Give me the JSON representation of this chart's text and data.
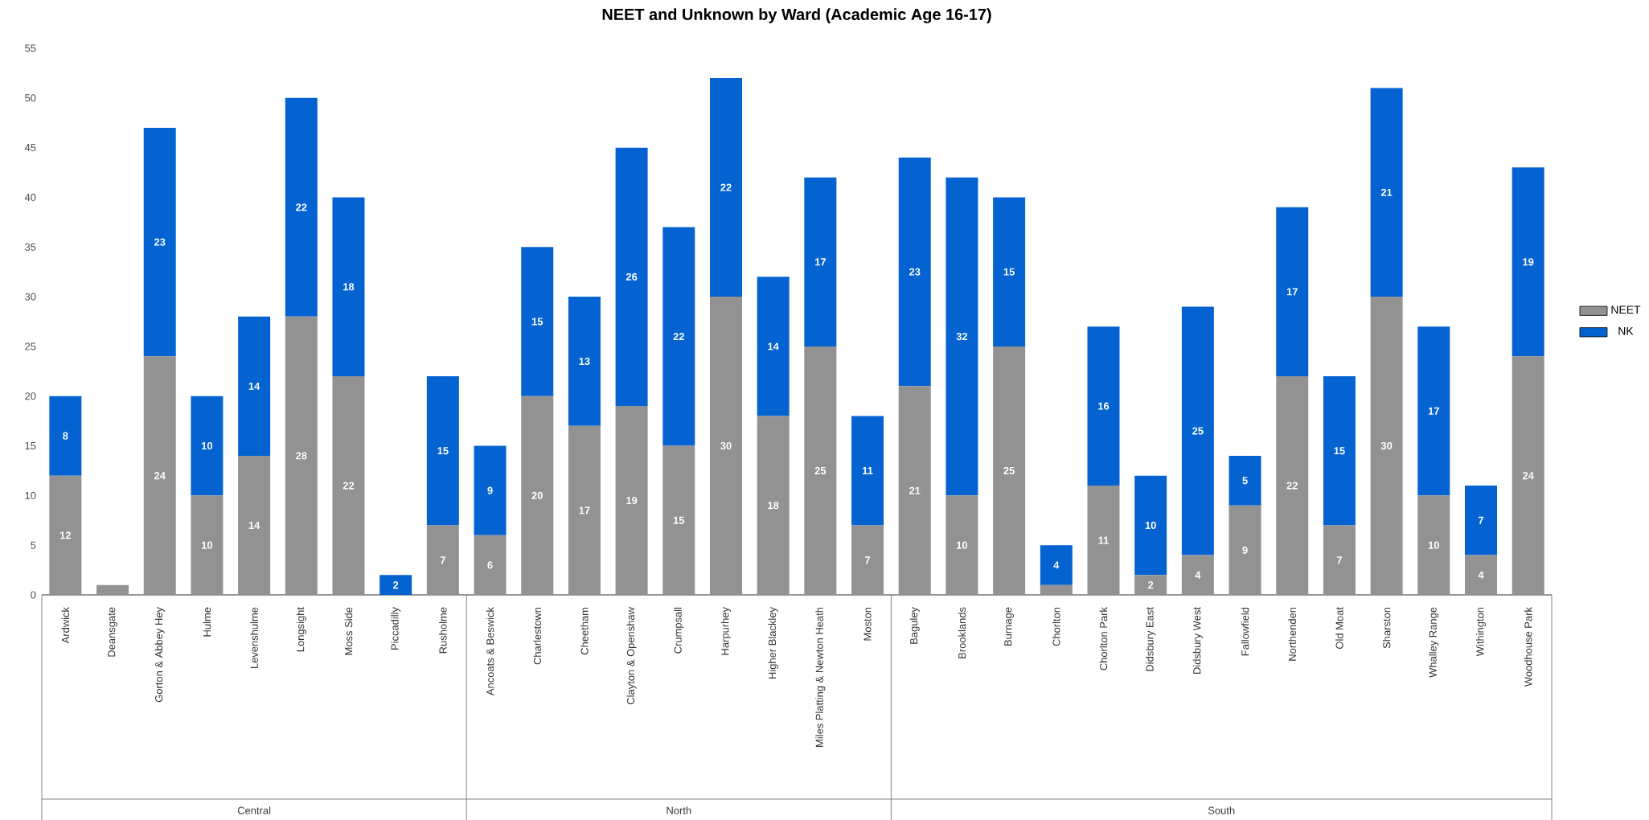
{
  "chart_data": {
    "type": "bar",
    "title": "NEET and Unknown by Ward (Academic Age 16-17)",
    "stacked": true,
    "legend": "right",
    "ylim": [
      0,
      55
    ],
    "yticks": [
      0,
      5,
      10,
      15,
      20,
      25,
      30,
      35,
      40,
      45,
      50,
      55
    ],
    "categories": [
      "Ardwick",
      "Deansgate",
      "Gorton & Abbey Hey",
      "Hulme",
      "Levenshulme",
      "Longsight",
      "Moss Side",
      "Piccadilly",
      "Rusholme",
      "Ancoats & Beswick",
      "Charlestown",
      "Cheetham",
      "Clayton & Openshaw",
      "Crumpsall",
      "Harpurhey",
      "Higher Blackley",
      "Miles Platting & Newton Heath",
      "Moston",
      "Baguley",
      "Brooklands",
      "Burnage",
      "Chorlton",
      "Chorlton Park",
      "Didsbury East",
      "Didsbury West",
      "Fallowfield",
      "Northenden",
      "Old Moat",
      "Sharston",
      "Whalley Range",
      "Withington",
      "Woodhouse Park"
    ],
    "series": [
      {
        "name": "NEET",
        "color": "#929292",
        "values": [
          12,
          1,
          24,
          10,
          14,
          28,
          22,
          0,
          7,
          6,
          20,
          17,
          19,
          15,
          30,
          18,
          25,
          7,
          21,
          10,
          25,
          1,
          11,
          2,
          4,
          9,
          22,
          7,
          30,
          10,
          4,
          24
        ],
        "value_labels": [
          "12",
          null,
          "24",
          "10",
          "14",
          "28",
          "22",
          null,
          "7",
          "6",
          "20",
          "17",
          "19",
          "15",
          "30",
          "18",
          "25",
          "7",
          "21",
          "10",
          "25",
          null,
          "11",
          "2",
          "4",
          "9",
          "22",
          "7",
          "30",
          "10",
          "4",
          "24"
        ]
      },
      {
        "name": "NK",
        "color": "#0563d1",
        "values": [
          8,
          0,
          23,
          10,
          14,
          22,
          18,
          2,
          15,
          9,
          15,
          13,
          26,
          22,
          22,
          14,
          17,
          11,
          23,
          32,
          15,
          4,
          16,
          10,
          25,
          5,
          17,
          15,
          21,
          17,
          7,
          19
        ],
        "value_labels": [
          "8",
          null,
          "23",
          "10",
          "14",
          "22",
          "18",
          "2",
          "15",
          "9",
          "15",
          "13",
          "26",
          "22",
          "22",
          "14",
          "17",
          "11",
          "23",
          "32",
          "15",
          "4",
          "16",
          "10",
          "25",
          "5",
          "17",
          "15",
          "21",
          "17",
          "7",
          "19"
        ]
      }
    ],
    "annotations": [
      "Central",
      "North",
      "South"
    ]
  }
}
